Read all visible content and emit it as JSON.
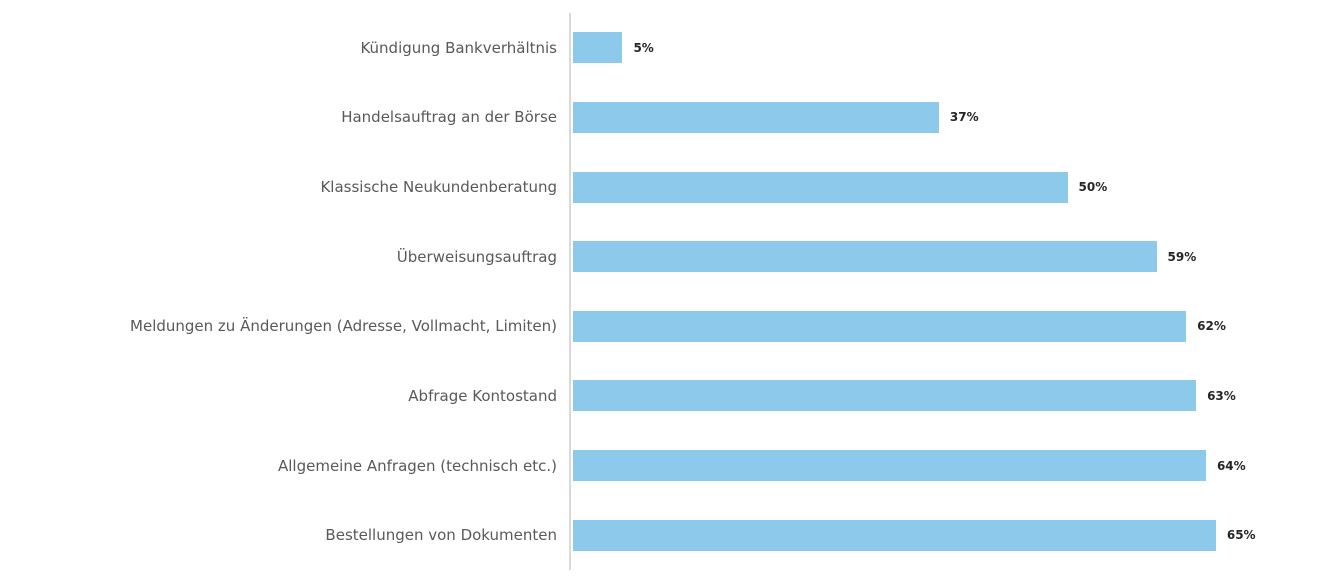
{
  "chart_data": {
    "type": "bar",
    "orientation": "horizontal",
    "title": "",
    "xlabel": "",
    "ylabel": "",
    "grid": false,
    "legend": false,
    "unit": "%",
    "xlim": [
      0,
      77
    ],
    "categories": [
      "Kündigung Bankverhältnis",
      "Handelsauftrag an der Börse",
      "Klassische Neukundenberatung",
      "Überweisungsauftrag",
      "Meldungen zu Änderungen (Adresse, Vollmacht, Limiten)",
      "Abfrage Kontostand",
      "Allgemeine Anfragen (technisch etc.)",
      "Bestellungen von Dokumenten"
    ],
    "values": [
      5,
      37,
      50,
      59,
      62,
      63,
      64,
      65
    ],
    "value_labels": [
      "5%",
      "37%",
      "50%",
      "59%",
      "62%",
      "63%",
      "64%",
      "65%"
    ],
    "colors": {
      "bar": "#8dc9ea",
      "axis_line": "#d9d9d9",
      "category_label": "#595959",
      "value_label": "#262626",
      "background": "#ffffff"
    }
  }
}
